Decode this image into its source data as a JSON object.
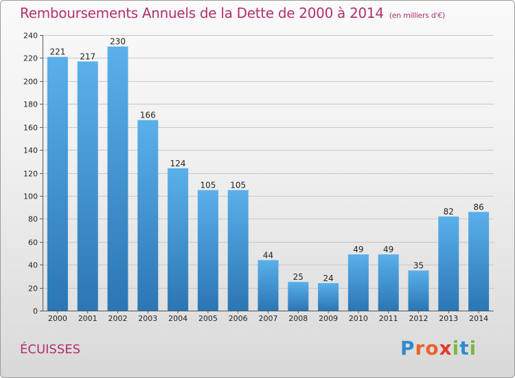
{
  "title": "Remboursements Annuels de la Dette de 2000 à 2014",
  "subtitle": "(en milliers d'€)",
  "commune": "ÉCUISSES",
  "logo": {
    "letters": [
      "P",
      "r",
      "o",
      "x",
      "i",
      "t",
      "i"
    ],
    "colors": [
      "#2e8ccd",
      "#e8622c",
      "#e8622c",
      "#e23a2d",
      "#78b943",
      "#2e8ccd",
      "#78b943"
    ]
  },
  "colors": {
    "bar_top": "#5ab0ea",
    "bar_bottom": "#2b76b4",
    "title": "#b0306f"
  },
  "chart_data": {
    "type": "bar",
    "title": "Remboursements Annuels de la Dette de 2000 à 2014",
    "subtitle": "(en milliers d'€)",
    "categories": [
      "2000",
      "2001",
      "2002",
      "2003",
      "2004",
      "2005",
      "2006",
      "2007",
      "2008",
      "2009",
      "2010",
      "2011",
      "2012",
      "2013",
      "2014"
    ],
    "values": [
      221,
      217,
      230,
      166,
      124,
      105,
      105,
      44,
      25,
      24,
      49,
      49,
      35,
      82,
      86
    ],
    "yticks": [
      0,
      20,
      40,
      60,
      80,
      100,
      120,
      140,
      160,
      180,
      200,
      220,
      240
    ],
    "ylim": [
      0,
      240
    ],
    "xlabel": "",
    "ylabel": "",
    "grid": "horizontal",
    "data_labels": true
  }
}
